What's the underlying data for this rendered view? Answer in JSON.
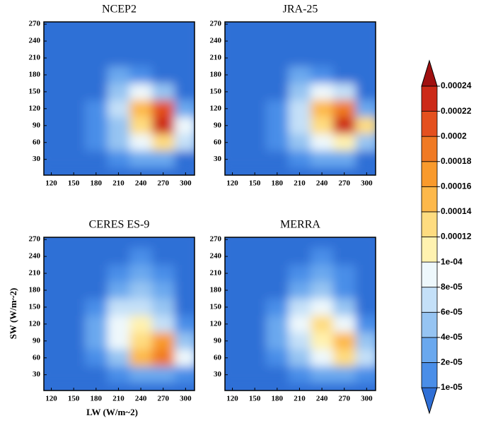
{
  "chart_data": [
    {
      "type": "heatmap",
      "title": "NCEP2",
      "x": [
        120,
        150,
        180,
        210,
        240,
        270,
        300
      ],
      "y": [
        270,
        240,
        210,
        180,
        150,
        120,
        90,
        60,
        30
      ],
      "z": [
        [
          0,
          0,
          0,
          0,
          0,
          0,
          0
        ],
        [
          0,
          0,
          0,
          0,
          0,
          0,
          0
        ],
        [
          0,
          0,
          0,
          5e-06,
          0,
          0,
          0
        ],
        [
          0,
          0,
          0,
          2e-05,
          1e-05,
          0,
          0
        ],
        [
          0,
          0,
          0,
          5e-05,
          8e-05,
          4e-05,
          0
        ],
        [
          0,
          0,
          1e-05,
          6e-05,
          0.00014,
          0.0002,
          3e-05
        ],
        [
          0,
          0,
          1e-05,
          5e-05,
          0.00012,
          0.00023,
          8e-05
        ],
        [
          0,
          0,
          1e-05,
          4e-05,
          8e-05,
          0.00012,
          6e-05
        ],
        [
          0,
          0,
          0,
          1e-05,
          2e-05,
          2e-05,
          0
        ]
      ],
      "xlim": [
        110,
        312
      ],
      "ylim": [
        2,
        274
      ],
      "xticks": [
        120,
        150,
        180,
        210,
        240,
        270,
        300
      ],
      "yticks": [
        30,
        60,
        90,
        120,
        150,
        180,
        210,
        240,
        270
      ]
    },
    {
      "type": "heatmap",
      "title": "JRA-25",
      "x": [
        120,
        150,
        180,
        210,
        240,
        270,
        300
      ],
      "y": [
        270,
        240,
        210,
        180,
        150,
        120,
        90,
        60,
        30
      ],
      "z": [
        [
          0,
          0,
          0,
          0,
          0,
          0,
          0
        ],
        [
          0,
          0,
          0,
          0,
          0,
          0,
          0
        ],
        [
          0,
          0,
          0,
          5e-06,
          0,
          0,
          0
        ],
        [
          0,
          0,
          0,
          2e-05,
          1e-05,
          0,
          0
        ],
        [
          0,
          0,
          0,
          5e-05,
          9e-05,
          6e-05,
          0
        ],
        [
          0,
          0,
          1e-05,
          6e-05,
          0.00014,
          0.00018,
          3e-05
        ],
        [
          0,
          0,
          1e-05,
          6e-05,
          0.00012,
          0.00022,
          0.00012
        ],
        [
          0,
          0,
          1e-05,
          5e-05,
          8e-05,
          0.0001,
          5e-05
        ],
        [
          0,
          0,
          0,
          1e-05,
          2e-05,
          2e-05,
          0
        ]
      ],
      "xlim": [
        110,
        312
      ],
      "ylim": [
        2,
        274
      ],
      "xticks": [
        120,
        150,
        180,
        210,
        240,
        270,
        300
      ],
      "yticks": [
        30,
        60,
        90,
        120,
        150,
        180,
        210,
        240,
        270
      ]
    },
    {
      "type": "heatmap",
      "title": "CERES ES-9",
      "xlabel": "LW (W/m~2)",
      "ylabel": "SW (W/m~2)",
      "x": [
        120,
        150,
        180,
        210,
        240,
        270,
        300
      ],
      "y": [
        270,
        240,
        210,
        180,
        150,
        120,
        90,
        60,
        30
      ],
      "z": [
        [
          0,
          0,
          0,
          0,
          5e-06,
          0,
          0
        ],
        [
          0,
          0,
          0,
          0,
          1e-05,
          0,
          0
        ],
        [
          0,
          0,
          0,
          1e-05,
          2e-05,
          1e-05,
          0
        ],
        [
          0,
          0,
          0,
          3e-05,
          5e-05,
          2e-05,
          0
        ],
        [
          0,
          0,
          1e-05,
          6e-05,
          7e-05,
          5e-05,
          0
        ],
        [
          0,
          0,
          2e-05,
          8e-05,
          0.00011,
          7e-05,
          1e-05
        ],
        [
          0,
          0,
          2e-05,
          8e-05,
          0.00013,
          0.00016,
          5e-05
        ],
        [
          0,
          0,
          1e-05,
          5e-05,
          0.00014,
          0.00019,
          8e-05
        ],
        [
          0,
          0,
          0,
          1e-05,
          3e-05,
          3e-05,
          1e-05
        ]
      ],
      "xlim": [
        110,
        312
      ],
      "ylim": [
        2,
        274
      ],
      "xticks": [
        120,
        150,
        180,
        210,
        240,
        270,
        300
      ],
      "yticks": [
        30,
        60,
        90,
        120,
        150,
        180,
        210,
        240,
        270
      ]
    },
    {
      "type": "heatmap",
      "title": "MERRA",
      "x": [
        120,
        150,
        180,
        210,
        240,
        270,
        300
      ],
      "y": [
        270,
        240,
        210,
        180,
        150,
        120,
        90,
        60,
        30
      ],
      "z": [
        [
          0,
          0,
          0,
          0,
          5e-06,
          0,
          0
        ],
        [
          0,
          0,
          0,
          5e-06,
          1e-05,
          0,
          0
        ],
        [
          0,
          0,
          0,
          1e-05,
          2e-05,
          1e-05,
          0
        ],
        [
          0,
          0,
          0,
          3e-05,
          4e-05,
          1e-05,
          0
        ],
        [
          0,
          0,
          1e-05,
          6e-05,
          8e-05,
          4e-05,
          0
        ],
        [
          0,
          0,
          2e-05,
          8e-05,
          0.00012,
          8e-05,
          1e-05
        ],
        [
          0,
          0,
          2e-05,
          6e-05,
          0.00011,
          0.00014,
          5e-05
        ],
        [
          0,
          0,
          1e-05,
          4e-05,
          9e-05,
          0.00013,
          6e-05
        ],
        [
          0,
          0,
          0,
          1e-05,
          2e-05,
          2e-05,
          1e-05
        ]
      ],
      "xlim": [
        110,
        312
      ],
      "ylim": [
        2,
        274
      ],
      "xticks": [
        120,
        150,
        180,
        210,
        240,
        270,
        300
      ],
      "yticks": [
        30,
        60,
        90,
        120,
        150,
        180,
        210,
        240,
        270
      ]
    }
  ],
  "colorbar": {
    "levels": [
      {
        "value": 1e-05,
        "label": "1e-05"
      },
      {
        "value": 2e-05,
        "label": "2e-05"
      },
      {
        "value": 4e-05,
        "label": "4e-05"
      },
      {
        "value": 6e-05,
        "label": "6e-05"
      },
      {
        "value": 8e-05,
        "label": "8e-05"
      },
      {
        "value": 0.0001,
        "label": "1e-04"
      },
      0.00012,
      0.00014,
      0.00016,
      0.00018,
      0.0002,
      0.00022,
      0.00024
    ],
    "colors": [
      "#2f6fd6",
      "#4a8ee8",
      "#6aa8ee",
      "#96c4f2",
      "#c4e0f8",
      "#eef8fc",
      "#fff2b0",
      "#fedc80",
      "#fdb84a",
      "#f99a2c",
      "#f07a24",
      "#e4501e",
      "#cc2a18",
      "#a01010"
    ]
  }
}
